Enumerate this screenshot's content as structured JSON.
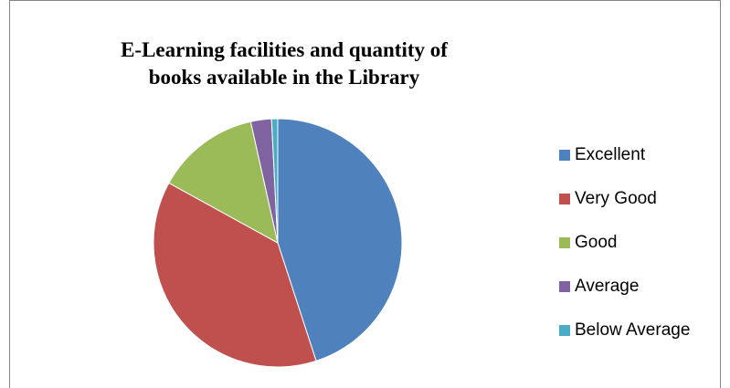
{
  "chart_data": {
    "type": "pie",
    "title": "E-Learning facilities and quantity of books available in the Library",
    "categories": [
      "Excellent",
      "Very Good",
      "Good",
      "Average",
      "Below Average"
    ],
    "values": [
      45,
      38,
      13.5,
      2.7,
      0.8
    ],
    "colors": [
      "#4f81bd",
      "#c0504d",
      "#9bbb59",
      "#8064a2",
      "#4bacc6"
    ],
    "legend": "right"
  }
}
